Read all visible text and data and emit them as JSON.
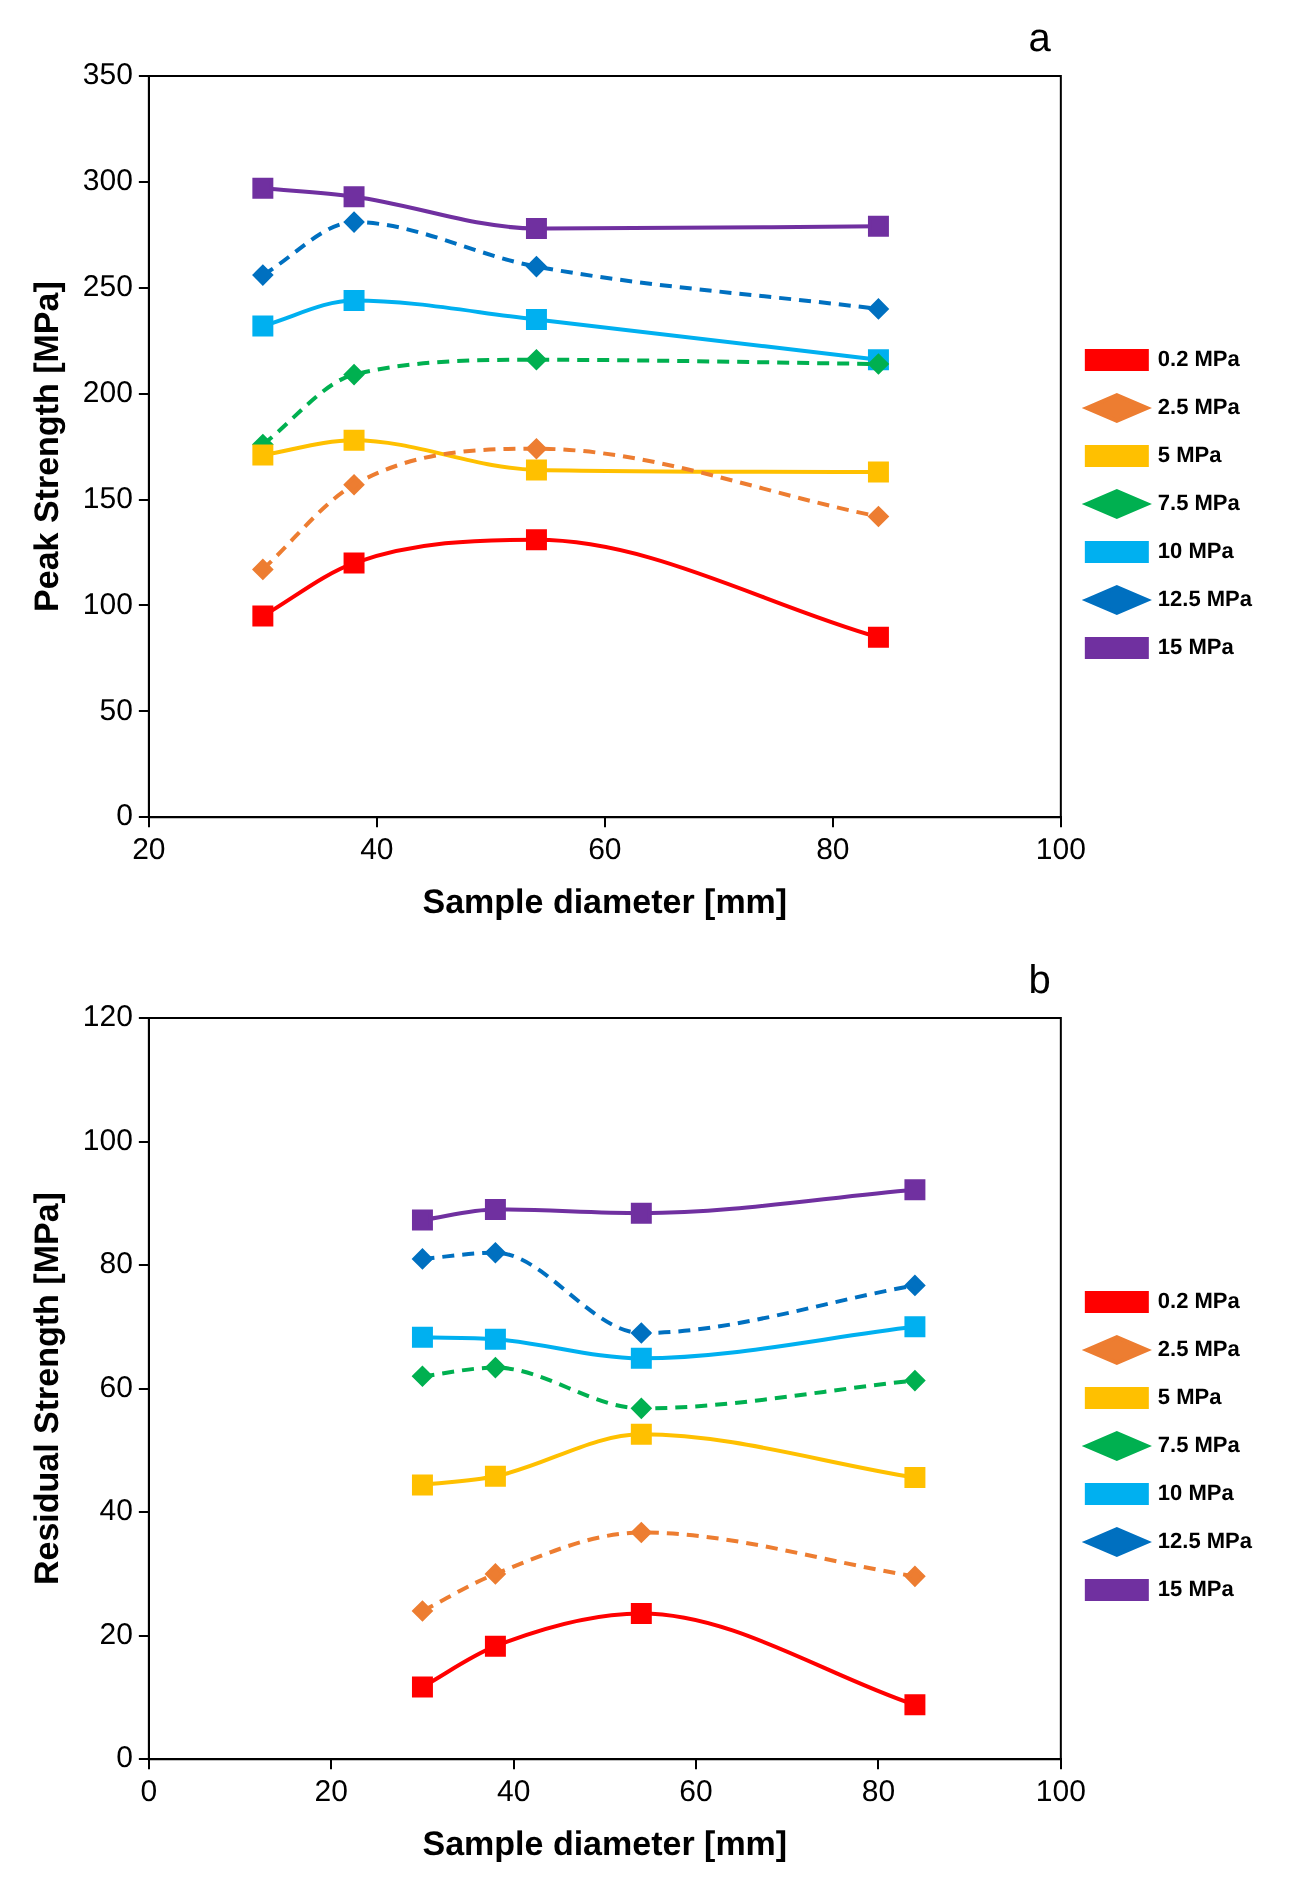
{
  "chart_data": [
    {
      "type": "line",
      "title": "a",
      "xlabel": "Sample diameter [mm]",
      "ylabel": "Peak Strength [MPa]",
      "x": [
        30,
        38,
        54,
        84
      ],
      "xlim": [
        20,
        100
      ],
      "xticks": [
        20,
        40,
        60,
        80,
        100
      ],
      "ylim": [
        0,
        350
      ],
      "yticks": [
        0,
        50,
        100,
        150,
        200,
        250,
        300,
        350
      ],
      "grid": false,
      "legend": "right",
      "series": [
        {
          "name": "0.2 MPa",
          "color": "#ff0000",
          "marker": "square",
          "line_style": "solid",
          "values": [
            95,
            120,
            131,
            85
          ]
        },
        {
          "name": "2.5 MPa",
          "color": "#ed7d31",
          "marker": "diamond",
          "line_style": "dashed",
          "values": [
            117,
            157,
            174,
            142
          ]
        },
        {
          "name": "5 MPa",
          "color": "#ffc000",
          "marker": "square",
          "line_style": "solid",
          "values": [
            171,
            178,
            164,
            163
          ]
        },
        {
          "name": "7.5 MPa",
          "color": "#00b050",
          "marker": "diamond",
          "line_style": "dashed",
          "values": [
            176,
            209,
            216,
            214
          ]
        },
        {
          "name": "10 MPa",
          "color": "#00b0f0",
          "marker": "square",
          "line_style": "solid",
          "values": [
            232,
            244,
            235,
            216
          ]
        },
        {
          "name": "12.5 MPa",
          "color": "#0070c0",
          "marker": "diamond",
          "line_style": "dashed",
          "values": [
            256,
            281,
            260,
            240
          ]
        },
        {
          "name": "15 MPa",
          "color": "#7030a0",
          "marker": "square",
          "line_style": "solid",
          "values": [
            297,
            293,
            278,
            279
          ]
        }
      ]
    },
    {
      "type": "line",
      "title": "b",
      "xlabel": "Sample diameter [mm]",
      "ylabel": "Residual Strength [MPa]",
      "x": [
        30,
        38,
        54,
        84
      ],
      "xlim": [
        0,
        100
      ],
      "xticks": [
        0,
        20,
        40,
        60,
        80,
        100
      ],
      "ylim": [
        0,
        120
      ],
      "yticks": [
        0,
        20,
        40,
        60,
        80,
        100,
        120
      ],
      "grid": false,
      "legend": "right",
      "series": [
        {
          "name": "0.2 MPa",
          "color": "#ff0000",
          "marker": "square",
          "line_style": "solid",
          "values": [
            11.7,
            18.3,
            23.6,
            8.8
          ]
        },
        {
          "name": "2.5 MPa",
          "color": "#ed7d31",
          "marker": "diamond",
          "line_style": "dashed",
          "values": [
            24,
            30,
            36.7,
            29.6
          ]
        },
        {
          "name": "5 MPa",
          "color": "#ffc000",
          "marker": "square",
          "line_style": "solid",
          "values": [
            44.4,
            45.8,
            52.6,
            45.6
          ]
        },
        {
          "name": "7.5 MPa",
          "color": "#00b050",
          "marker": "diamond",
          "line_style": "dashed",
          "values": [
            62,
            63.4,
            56.8,
            61.3
          ]
        },
        {
          "name": "10 MPa",
          "color": "#00b0f0",
          "marker": "square",
          "line_style": "solid",
          "values": [
            68.3,
            68,
            64.9,
            70
          ]
        },
        {
          "name": "12.5 MPa",
          "color": "#0070c0",
          "marker": "diamond",
          "line_style": "dashed",
          "values": [
            81,
            82,
            69,
            76.7
          ]
        },
        {
          "name": "15 MPa",
          "color": "#7030a0",
          "marker": "square",
          "line_style": "solid",
          "values": [
            87.3,
            89,
            88.4,
            92.2
          ]
        }
      ]
    }
  ]
}
